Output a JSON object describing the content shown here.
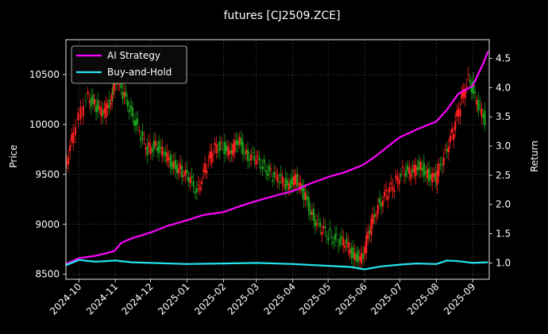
{
  "chart_data": {
    "type": "line",
    "title": "futures [CJ2509.ZCE]",
    "ylabel_left": "Price",
    "ylabel_right": "Return",
    "x_ticks": [
      "2024-10",
      "2024-11",
      "2024-12",
      "2025-01",
      "2025-02",
      "2025-03",
      "2025-04",
      "2025-05",
      "2025-06",
      "2025-07",
      "2025-08",
      "2025-09"
    ],
    "x_range": [
      "2024-09-20",
      "2025-09-15"
    ],
    "y_left_ticks": [
      8500,
      9000,
      9500,
      10000,
      10500
    ],
    "y_left_range": [
      8450,
      10850
    ],
    "y_right_ticks": [
      1.0,
      1.5,
      2.0,
      2.5,
      3.0,
      3.5,
      4.0,
      4.5
    ],
    "y_right_range": [
      0.72,
      4.82
    ],
    "grid": true,
    "legend_position": "top-left",
    "colors": {
      "background": "#000000",
      "ai_strategy": "#ff00ff",
      "buy_and_hold": "#22e5ef",
      "candle_up": "#ff2020",
      "candle_down": "#1c9a1c"
    },
    "price_series": {
      "name": "",
      "dates": [
        "2024-09-20",
        "2024-09-27",
        "2024-10-08",
        "2024-10-15",
        "2024-10-22",
        "2024-10-29",
        "2024-11-01",
        "2024-11-08",
        "2024-11-15",
        "2024-11-22",
        "2024-11-29",
        "2024-12-06",
        "2024-12-13",
        "2024-12-20",
        "2024-12-27",
        "2025-01-03",
        "2025-01-10",
        "2025-01-17",
        "2025-01-24",
        "2025-01-31",
        "2025-02-07",
        "2025-02-14",
        "2025-02-21",
        "2025-02-28",
        "2025-03-07",
        "2025-03-14",
        "2025-03-21",
        "2025-03-28",
        "2025-04-04",
        "2025-04-11",
        "2025-04-18",
        "2025-04-25",
        "2025-05-02",
        "2025-05-09",
        "2025-05-16",
        "2025-05-23",
        "2025-05-30",
        "2025-06-06",
        "2025-06-13",
        "2025-06-20",
        "2025-06-27",
        "2025-07-04",
        "2025-07-11",
        "2025-07-18",
        "2025-07-25",
        "2025-08-01",
        "2025-08-08",
        "2025-08-15",
        "2025-08-22",
        "2025-08-29",
        "2025-09-05",
        "2025-09-12"
      ],
      "values": [
        9600,
        9900,
        10300,
        10200,
        10100,
        10250,
        10500,
        10300,
        10150,
        9900,
        9750,
        9800,
        9700,
        9600,
        9550,
        9450,
        9350,
        9550,
        9750,
        9800,
        9700,
        9850,
        9700,
        9650,
        9600,
        9500,
        9450,
        9400,
        9450,
        9300,
        9100,
        8950,
        8900,
        8850,
        8800,
        8700,
        8650,
        8950,
        9200,
        9300,
        9400,
        9550,
        9500,
        9600,
        9500,
        9450,
        9700,
        9900,
        10200,
        10500,
        10200,
        10050
      ]
    },
    "series": [
      {
        "name": "AI Strategy",
        "dates": [
          "2024-09-20",
          "2024-10-01",
          "2024-10-15",
          "2024-10-31",
          "2024-11-06",
          "2024-11-15",
          "2024-12-01",
          "2024-12-15",
          "2025-01-01",
          "2025-01-15",
          "2025-02-01",
          "2025-02-15",
          "2025-03-01",
          "2025-03-15",
          "2025-04-01",
          "2025-04-15",
          "2025-05-01",
          "2025-05-15",
          "2025-05-31",
          "2025-06-10",
          "2025-06-20",
          "2025-07-01",
          "2025-07-15",
          "2025-08-01",
          "2025-08-10",
          "2025-08-20",
          "2025-09-01",
          "2025-09-10",
          "2025-09-14"
        ],
        "values": [
          0.98,
          1.08,
          1.12,
          1.2,
          1.34,
          1.42,
          1.52,
          1.63,
          1.73,
          1.82,
          1.87,
          1.97,
          2.06,
          2.14,
          2.23,
          2.35,
          2.47,
          2.55,
          2.68,
          2.82,
          2.98,
          3.15,
          3.28,
          3.42,
          3.62,
          3.9,
          4.03,
          4.42,
          4.62
        ]
      },
      {
        "name": "Buy-and-Hold",
        "dates": [
          "2024-09-20",
          "2024-10-01",
          "2024-10-15",
          "2024-11-01",
          "2024-11-15",
          "2024-12-01",
          "2025-01-01",
          "2025-02-01",
          "2025-03-01",
          "2025-04-01",
          "2025-05-01",
          "2025-05-20",
          "2025-06-01",
          "2025-06-15",
          "2025-07-01",
          "2025-07-15",
          "2025-08-01",
          "2025-08-10",
          "2025-08-20",
          "2025-09-01",
          "2025-09-14"
        ],
        "values": [
          0.96,
          1.05,
          1.02,
          1.04,
          1.01,
          1.0,
          0.98,
          0.99,
          1.0,
          0.98,
          0.95,
          0.93,
          0.89,
          0.94,
          0.97,
          0.99,
          0.98,
          1.04,
          1.03,
          1.0,
          1.01
        ]
      }
    ]
  }
}
